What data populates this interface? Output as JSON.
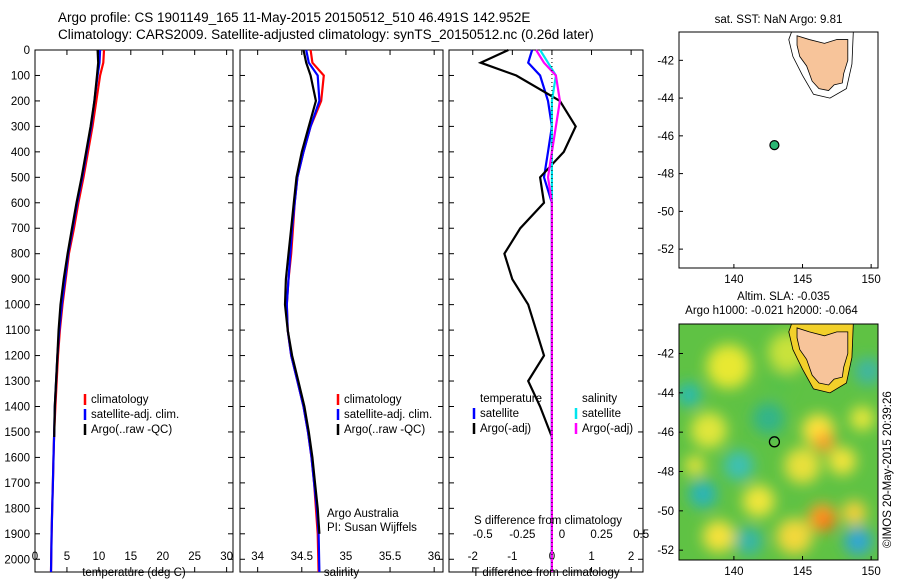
{
  "header": {
    "line1": "Argo profile: CS 1901149_165 11-May-2015 20150512_510 46.491S 142.952E",
    "line2": "Climatology: CARS2009. Satellite-adjusted climatology: synTS_20150512.nc (0.26d later)"
  },
  "colors": {
    "climatology": "#ff0000",
    "satellite": "#0000ff",
    "argo": "#000000",
    "satellite_salinity": "#00e5ee",
    "argo_salinity": "#ff00ff",
    "land": "#f7c49a",
    "float_marker": "#2bb673"
  },
  "chart_data": [
    {
      "id": "temperature",
      "type": "line",
      "xlabel": "temperature (deg C)",
      "ylabel": "",
      "xlim": [
        0,
        31
      ],
      "ylim": [
        2050,
        0
      ],
      "xticks": [
        "0",
        "5",
        "10",
        "15",
        "20",
        "25",
        "30"
      ],
      "yticks": [
        "0",
        "100",
        "200",
        "300",
        "400",
        "500",
        "600",
        "700",
        "800",
        "900",
        "1000",
        "1100",
        "1200",
        "1300",
        "1400",
        "1500",
        "1600",
        "1700",
        "1800",
        "1900",
        "2000"
      ],
      "legend": [
        "climatology",
        "satellite-adj. clim.",
        "Argo(..raw -QC)"
      ],
      "series": [
        {
          "name": "climatology",
          "color_key": "climatology",
          "x": [
            10.8,
            10.7,
            10.2,
            9.6,
            9.0,
            8.3,
            7.6,
            6.8,
            6.1,
            5.3,
            4.8,
            4.3,
            3.9,
            3.6,
            3.4,
            3.2,
            3.0,
            2.9,
            2.8,
            2.7,
            2.6,
            2.5
          ],
          "y": [
            0,
            50,
            100,
            200,
            300,
            400,
            500,
            600,
            700,
            800,
            900,
            1000,
            1100,
            1200,
            1300,
            1400,
            1500,
            1600,
            1700,
            1800,
            1900,
            2050
          ]
        },
        {
          "name": "satellite-adj. clim.",
          "color_key": "satellite",
          "x": [
            10.2,
            10.1,
            9.8,
            9.3,
            8.8,
            8.1,
            7.4,
            6.6,
            5.9,
            5.2,
            4.7,
            4.2,
            3.8,
            3.5,
            3.3,
            3.1,
            3.0,
            2.9,
            2.8,
            2.7,
            2.6,
            2.5
          ],
          "y": [
            0,
            50,
            100,
            200,
            300,
            400,
            500,
            600,
            700,
            800,
            900,
            1000,
            1100,
            1200,
            1300,
            1400,
            1500,
            1600,
            1700,
            1800,
            1900,
            2050
          ]
        },
        {
          "name": "Argo(..raw -QC)",
          "color_key": "argo",
          "x": [
            9.8,
            9.9,
            9.7,
            9.3,
            8.7,
            8.0,
            7.3,
            6.5,
            5.8,
            5.1,
            4.5,
            4.0,
            3.7,
            3.5,
            3.3,
            3.1,
            3.0
          ],
          "y": [
            0,
            50,
            100,
            200,
            300,
            400,
            500,
            600,
            700,
            800,
            900,
            1000,
            1100,
            1200,
            1300,
            1400,
            1520
          ]
        }
      ]
    },
    {
      "id": "salinity",
      "type": "line",
      "xlabel": "salinity",
      "xlim": [
        33.8,
        36.1
      ],
      "ylim": [
        2050,
        0
      ],
      "xticks": [
        "34",
        "34.5",
        "35",
        "35.5",
        "36"
      ],
      "legend": [
        "climatology",
        "satellite-adj. clim.",
        "Argo(..raw -QC)"
      ],
      "annotation": [
        "Argo Australia",
        "PI: Susan Wijffels"
      ],
      "series": [
        {
          "name": "climatology",
          "color_key": "climatology",
          "x": [
            34.6,
            34.62,
            34.75,
            34.72,
            34.6,
            34.52,
            34.45,
            34.42,
            34.4,
            34.38,
            34.35,
            34.33,
            34.34,
            34.38,
            34.45,
            34.52,
            34.57,
            34.61,
            34.64,
            34.66,
            34.68,
            34.69
          ],
          "y": [
            0,
            50,
            100,
            200,
            300,
            400,
            500,
            600,
            700,
            800,
            900,
            1000,
            1100,
            1200,
            1300,
            1400,
            1500,
            1600,
            1700,
            1800,
            1900,
            2050
          ]
        },
        {
          "name": "satellite-adj. clim.",
          "color_key": "satellite",
          "x": [
            34.55,
            34.58,
            34.68,
            34.7,
            34.6,
            34.52,
            34.45,
            34.42,
            34.39,
            34.37,
            34.35,
            34.33,
            34.34,
            34.38,
            34.45,
            34.52,
            34.57,
            34.61,
            34.64,
            34.67,
            34.69,
            34.7
          ],
          "y": [
            0,
            50,
            100,
            200,
            300,
            400,
            500,
            600,
            700,
            800,
            900,
            1000,
            1100,
            1200,
            1300,
            1400,
            1500,
            1600,
            1700,
            1800,
            1900,
            2050
          ]
        },
        {
          "name": "Argo(..raw -QC)",
          "color_key": "argo",
          "x": [
            34.52,
            34.55,
            34.6,
            34.66,
            34.58,
            34.5,
            34.44,
            34.41,
            34.38,
            34.35,
            34.32,
            34.31,
            34.34,
            34.39,
            34.46,
            34.53,
            34.58,
            34.62,
            34.65,
            34.68,
            34.7
          ],
          "y": [
            0,
            50,
            100,
            200,
            300,
            400,
            500,
            600,
            700,
            800,
            900,
            1000,
            1100,
            1200,
            1300,
            1400,
            1500,
            1600,
            1700,
            1800,
            1900
          ]
        }
      ]
    },
    {
      "id": "difference",
      "type": "line",
      "xlabel": "T difference from climatology",
      "top_label": "S difference from climatology",
      "xlim": [
        -2.6,
        2.3
      ],
      "ylim": [
        2050,
        0
      ],
      "xticks": [
        "-2",
        "-1",
        "0",
        "1",
        "2"
      ],
      "xticks_top": [
        "-0.5",
        "-0.25",
        "0",
        "0.25",
        "0.5"
      ],
      "legend_temperature": [
        "temperature",
        "satellite",
        "Argo(-adj)"
      ],
      "legend_salinity": [
        "salinity",
        "satellite",
        "Argo(-adj)"
      ],
      "series": [
        {
          "name": "satellite",
          "color_key": "satellite",
          "x": [
            -0.5,
            -0.6,
            -0.3,
            -0.1,
            0.0,
            -0.1,
            -0.2,
            0.0,
            0.0,
            0.0,
            0.0,
            0.0,
            0.0,
            0.0,
            0.0,
            0.0,
            0.0,
            0.0,
            0.0,
            0.0
          ],
          "y": [
            0,
            50,
            100,
            200,
            300,
            400,
            500,
            600,
            700,
            800,
            900,
            1000,
            1100,
            1200,
            1300,
            1400,
            1500,
            1600,
            1800,
            2050
          ]
        },
        {
          "name": "Argo(-adj)",
          "color_key": "argo",
          "x": [
            -1.1,
            -1.8,
            -0.9,
            0.2,
            0.6,
            0.3,
            -0.3,
            -0.2,
            -0.8,
            -1.2,
            -1.0,
            -0.6,
            -0.4,
            -0.2,
            -0.6,
            -0.3,
            0.0
          ],
          "y": [
            0,
            50,
            100,
            200,
            300,
            400,
            500,
            600,
            700,
            800,
            900,
            1000,
            1100,
            1200,
            1300,
            1400,
            1520
          ]
        },
        {
          "name": "salinity satellite",
          "color_key": "satellite_salinity",
          "x": [
            -0.3,
            -0.1,
            0.1,
            0.0,
            0.0,
            0.0,
            0.0,
            0.0,
            0.0,
            0.0,
            0.0,
            0.0,
            0.0,
            0.0,
            0.0,
            0.0,
            0.0,
            0.0,
            0.0
          ],
          "y": [
            0,
            50,
            100,
            200,
            300,
            400,
            500,
            600,
            700,
            800,
            900,
            1000,
            1200,
            1400,
            1500,
            1600,
            1800,
            1900,
            2050
          ]
        },
        {
          "name": "salinity Argo(-adj)",
          "color_key": "argo_salinity",
          "x": [
            -0.4,
            -0.2,
            0.1,
            0.2,
            0.1,
            0.0,
            -0.1,
            0.0,
            0.0,
            0.0,
            0.0,
            0.0,
            0.0,
            0.0,
            0.0,
            0.0,
            0.0,
            0.0,
            0.0
          ],
          "y": [
            0,
            50,
            100,
            200,
            300,
            400,
            500,
            600,
            700,
            800,
            900,
            1000,
            1200,
            1400,
            1500,
            1600,
            1800,
            1900,
            2050
          ]
        }
      ]
    },
    {
      "id": "map_sst",
      "type": "map",
      "title": "sat. SST: NaN Argo: 9.81",
      "xlim": [
        136,
        150.5
      ],
      "ylim": [
        -53,
        -40.5
      ],
      "xticks": [
        "140",
        "145",
        "150"
      ],
      "yticks": [
        "-42",
        "-44",
        "-46",
        "-48",
        "-50",
        "-52"
      ],
      "float": {
        "lon": 142.952,
        "lat": -46.491
      }
    },
    {
      "id": "map_sla",
      "type": "heatmap",
      "title_line1": "Altim. SLA: -0.035",
      "title_line2": "Argo h1000: -0.021 h2000: -0.064",
      "xlim": [
        136,
        150.5
      ],
      "ylim": [
        -52.5,
        -40.5
      ],
      "xticks": [
        "140",
        "145",
        "150"
      ],
      "yticks": [
        "-42",
        "-44",
        "-46",
        "-48",
        "-50",
        "-52"
      ],
      "float": {
        "lon": 142.952,
        "lat": -46.491
      }
    }
  ],
  "side_label": "©IMOS 20-May-2015 20:39:26"
}
